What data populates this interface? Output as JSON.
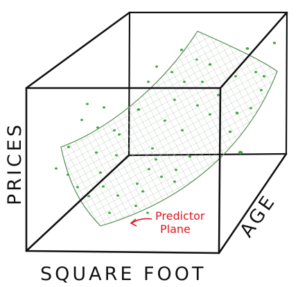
{
  "labels": {
    "x_axis": "SQUARE FOOT",
    "y_axis": "PRICES",
    "z_axis": "AGE",
    "annotation_line1": "Predictor",
    "annotation_line2": "Plane"
  },
  "colors": {
    "ink": "#111111",
    "plane_outline": "#6a9a6a",
    "plane_grid": "#b7c3b7",
    "points": "#3fa83f",
    "annotation": "#e0141e"
  }
}
